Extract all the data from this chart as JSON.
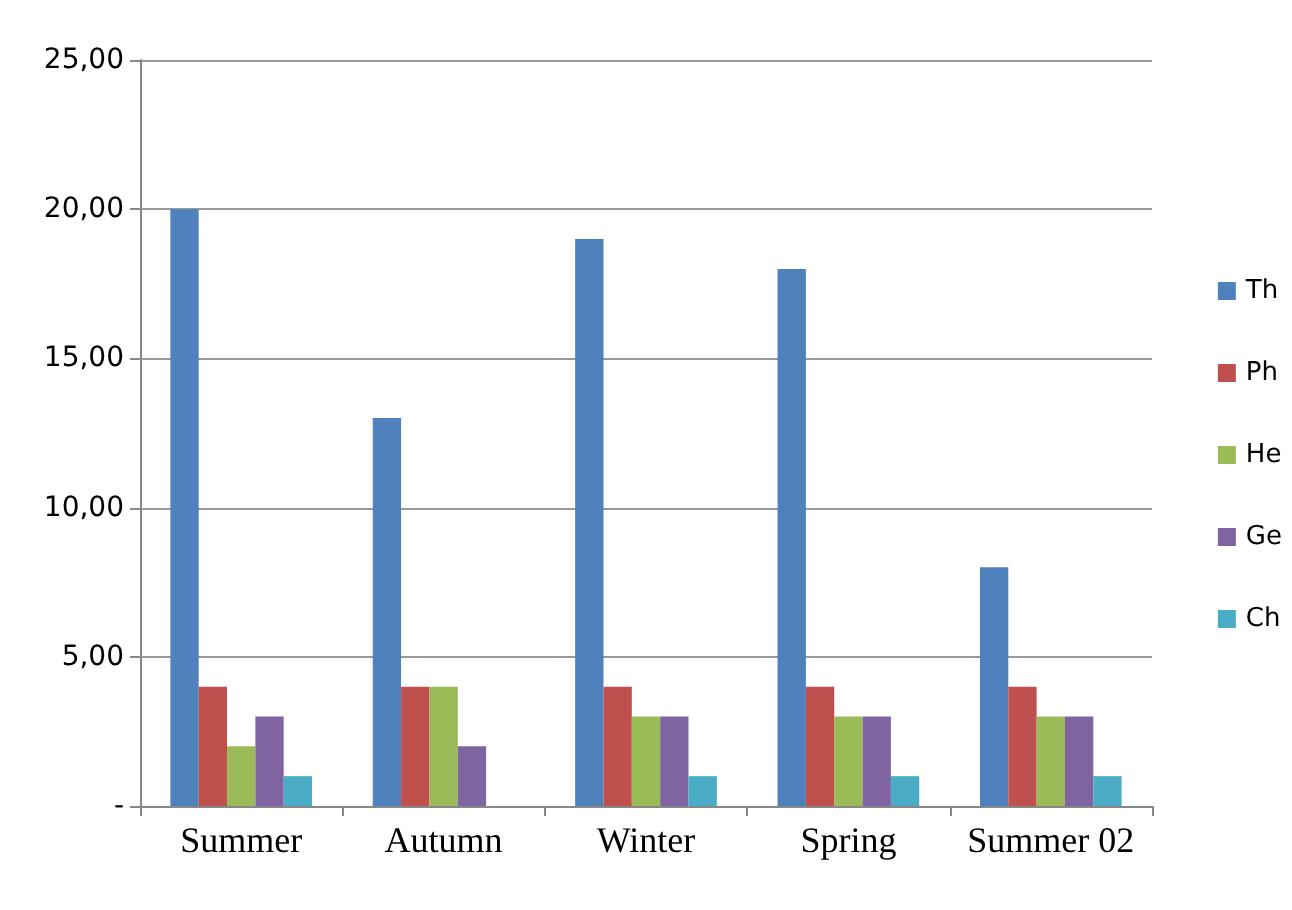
{
  "chart_data": {
    "type": "bar",
    "categories": [
      "Summer",
      "Autumn",
      "Winter",
      "Spring",
      "Summer 02"
    ],
    "series": [
      {
        "name": "Th",
        "color": "#4f81bd",
        "values": [
          20,
          13,
          19,
          18,
          8
        ]
      },
      {
        "name": "Ph",
        "color": "#c0504d",
        "values": [
          4,
          4,
          4,
          4,
          4
        ]
      },
      {
        "name": "He",
        "color": "#9bbb59",
        "values": [
          2,
          4,
          3,
          3,
          3
        ]
      },
      {
        "name": "Ge",
        "color": "#8064a2",
        "values": [
          3,
          2,
          3,
          3,
          3
        ]
      },
      {
        "name": "Ch",
        "color": "#4bacc6",
        "values": [
          1,
          0,
          1,
          1,
          1
        ]
      }
    ],
    "ylim": [
      0,
      25
    ],
    "yticks": [
      {
        "value": 0,
        "label": "-"
      },
      {
        "value": 5,
        "label": "5,00"
      },
      {
        "value": 10,
        "label": "10,00"
      },
      {
        "value": 15,
        "label": "15,00"
      },
      {
        "value": 20,
        "label": "20,00"
      },
      {
        "value": 25,
        "label": "25,00"
      }
    ],
    "grid": "y",
    "legend": "right"
  }
}
